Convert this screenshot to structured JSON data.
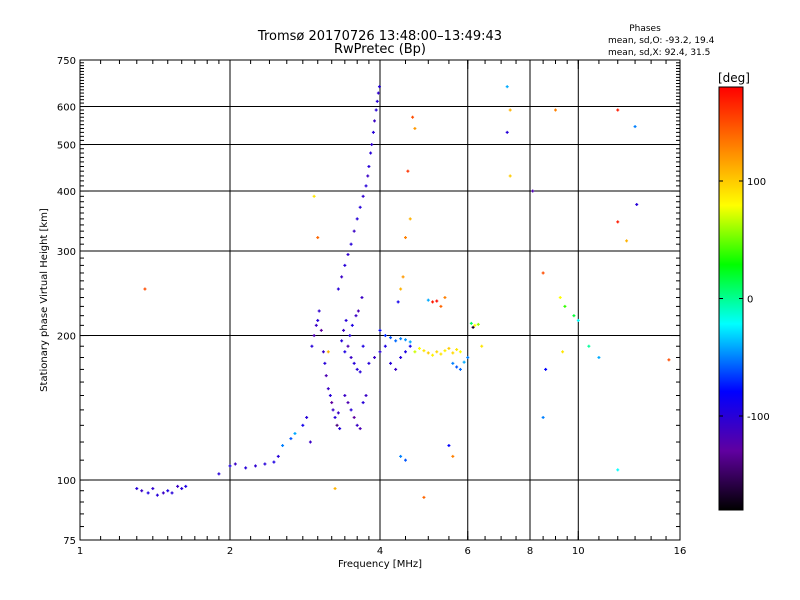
{
  "chart_data": {
    "type": "scatter",
    "title": "Tromsø 20170726 13:48:00–13:49:43",
    "subtitle": "RwPretec (Bp)",
    "xlabel": "Frequency [MHz]",
    "ylabel": "Stationary phase Virtual Height [km]",
    "x_scale": "log2",
    "y_scale": "log",
    "xlim": [
      1,
      16
    ],
    "ylim": [
      75,
      750
    ],
    "x_ticks": [
      1,
      2,
      4,
      6,
      8,
      10,
      16
    ],
    "y_ticks": [
      75,
      100,
      200,
      300,
      400,
      500,
      600,
      750
    ],
    "grid": true,
    "stats": {
      "heading": "Phases",
      "line_o": "mean, sd,O: -93.2, 19.4",
      "line_x": "mean, sd,X:  92.4, 31.5"
    },
    "colorbar": {
      "label": "[deg]",
      "range": [
        -180,
        180
      ],
      "ticks": [
        "100",
        "0",
        "-100"
      ],
      "tick_values": [
        100,
        0,
        -100
      ],
      "colors": [
        "#ff0000",
        "#ff8000",
        "#ffff00",
        "#00ff00",
        "#00ffff",
        "#0000ff",
        "#6000a0",
        "#000000"
      ]
    },
    "series": [
      {
        "points": [
          [
            1.3,
            96,
            -100
          ],
          [
            1.33,
            95,
            -110
          ],
          [
            1.37,
            94,
            -95
          ],
          [
            1.4,
            96,
            -105
          ],
          [
            1.43,
            93,
            -100
          ],
          [
            1.47,
            94,
            -110
          ],
          [
            1.5,
            95,
            -95
          ],
          [
            1.53,
            94,
            -100
          ],
          [
            1.57,
            97,
            -110
          ],
          [
            1.6,
            96,
            -100
          ],
          [
            1.63,
            97,
            -95
          ],
          [
            1.9,
            103,
            -100
          ],
          [
            2.0,
            107,
            -95
          ],
          [
            2.05,
            108,
            -110
          ],
          [
            2.15,
            106,
            -100
          ],
          [
            2.25,
            107,
            -105
          ],
          [
            2.35,
            108,
            -100
          ],
          [
            2.45,
            109,
            -95
          ],
          [
            2.5,
            112,
            -100
          ],
          [
            2.55,
            118,
            -50
          ],
          [
            2.65,
            122,
            -60
          ],
          [
            2.7,
            125,
            -40
          ],
          [
            2.8,
            130,
            -90
          ],
          [
            2.85,
            135,
            -100
          ],
          [
            2.9,
            120,
            -110
          ],
          [
            2.92,
            190,
            -100
          ],
          [
            2.95,
            200,
            -120
          ],
          [
            2.98,
            210,
            -110
          ],
          [
            3.0,
            215,
            -100
          ],
          [
            3.02,
            225,
            -105
          ],
          [
            3.05,
            205,
            -130
          ],
          [
            3.08,
            185,
            -110
          ],
          [
            3.1,
            175,
            -100
          ],
          [
            3.12,
            165,
            -120
          ],
          [
            3.15,
            155,
            -110
          ],
          [
            3.18,
            150,
            -100
          ],
          [
            3.2,
            145,
            -130
          ],
          [
            3.22,
            140,
            -110
          ],
          [
            3.25,
            135,
            -100
          ],
          [
            3.28,
            130,
            -140
          ],
          [
            3.3,
            138,
            -110
          ],
          [
            3.32,
            128,
            -100
          ],
          [
            3.35,
            195,
            -100
          ],
          [
            3.38,
            205,
            -110
          ],
          [
            3.4,
            185,
            -95
          ],
          [
            3.42,
            215,
            -100
          ],
          [
            3.45,
            190,
            -120
          ],
          [
            3.48,
            200,
            -100
          ],
          [
            3.5,
            180,
            -110
          ],
          [
            3.52,
            210,
            -95
          ],
          [
            3.55,
            175,
            -100
          ],
          [
            3.58,
            220,
            -110
          ],
          [
            3.6,
            170,
            -100
          ],
          [
            3.62,
            225,
            -120
          ],
          [
            3.65,
            168,
            -100
          ],
          [
            3.68,
            240,
            -110
          ],
          [
            3.7,
            190,
            -95
          ],
          [
            3.3,
            250,
            -100
          ],
          [
            3.35,
            265,
            -110
          ],
          [
            3.4,
            280,
            -100
          ],
          [
            3.45,
            295,
            -105
          ],
          [
            3.5,
            310,
            -100
          ],
          [
            3.55,
            330,
            -110
          ],
          [
            3.6,
            350,
            -100
          ],
          [
            3.65,
            370,
            -100
          ],
          [
            3.7,
            390,
            -105
          ],
          [
            3.75,
            410,
            -100
          ],
          [
            3.78,
            430,
            -110
          ],
          [
            3.8,
            450,
            -100
          ],
          [
            3.83,
            480,
            -100
          ],
          [
            3.85,
            500,
            -105
          ],
          [
            3.88,
            530,
            -100
          ],
          [
            3.9,
            560,
            -110
          ],
          [
            3.93,
            590,
            -100
          ],
          [
            3.95,
            615,
            -100
          ],
          [
            3.97,
            640,
            -105
          ],
          [
            3.99,
            660,
            -100
          ],
          [
            3.4,
            150,
            -110
          ],
          [
            3.45,
            145,
            -120
          ],
          [
            3.5,
            140,
            -100
          ],
          [
            3.55,
            135,
            -130
          ],
          [
            3.6,
            130,
            -110
          ],
          [
            3.65,
            128,
            -120
          ],
          [
            3.7,
            145,
            -100
          ],
          [
            3.75,
            150,
            -110
          ],
          [
            3.8,
            175,
            -100
          ],
          [
            3.9,
            180,
            -110
          ],
          [
            4.0,
            185,
            -100
          ],
          [
            4.1,
            190,
            -95
          ],
          [
            4.2,
            175,
            -100
          ],
          [
            4.3,
            170,
            -110
          ],
          [
            4.4,
            180,
            -100
          ],
          [
            4.5,
            185,
            -95
          ],
          [
            4.6,
            190,
            -90
          ],
          [
            4.0,
            205,
            -80
          ],
          [
            4.1,
            200,
            -70
          ],
          [
            4.2,
            198,
            -60
          ],
          [
            4.3,
            195,
            -55
          ],
          [
            4.4,
            197,
            -50
          ],
          [
            4.5,
            196,
            -45
          ],
          [
            4.6,
            194,
            -40
          ],
          [
            4.7,
            185,
            70
          ],
          [
            4.8,
            188,
            80
          ],
          [
            4.9,
            186,
            90
          ],
          [
            5.0,
            184,
            100
          ],
          [
            5.1,
            182,
            85
          ],
          [
            5.2,
            185,
            95
          ],
          [
            5.3,
            183,
            90
          ],
          [
            5.4,
            186,
            85
          ],
          [
            5.5,
            188,
            100
          ],
          [
            5.6,
            184,
            95
          ],
          [
            5.7,
            187,
            90
          ],
          [
            5.8,
            185,
            80
          ],
          [
            5.6,
            175,
            -50
          ],
          [
            5.7,
            172,
            -60
          ],
          [
            5.8,
            170,
            -55
          ],
          [
            5.9,
            176,
            -40
          ],
          [
            4.7,
            540,
            120
          ],
          [
            4.65,
            570,
            150
          ],
          [
            4.55,
            440,
            160
          ],
          [
            4.6,
            350,
            110
          ],
          [
            4.5,
            320,
            130
          ],
          [
            4.45,
            265,
            120
          ],
          [
            4.4,
            250,
            110
          ],
          [
            4.35,
            235,
            -90
          ],
          [
            4.5,
            110,
            -60
          ],
          [
            4.4,
            112,
            -50
          ],
          [
            5.1,
            235,
            170
          ],
          [
            5.2,
            236,
            175
          ],
          [
            5.0,
            237,
            -40
          ],
          [
            5.3,
            230,
            140
          ],
          [
            5.4,
            240,
            130
          ],
          [
            6.1,
            212,
            10
          ],
          [
            6.2,
            210,
            80
          ],
          [
            6.3,
            211,
            60
          ],
          [
            6.15,
            208,
            -170
          ],
          [
            6.4,
            190,
            90
          ],
          [
            5.5,
            118,
            -80
          ],
          [
            5.6,
            112,
            130
          ],
          [
            6.0,
            180,
            -50
          ],
          [
            7.2,
            660,
            -40
          ],
          [
            7.3,
            590,
            110
          ],
          [
            7.2,
            530,
            -100
          ],
          [
            7.3,
            430,
            100
          ],
          [
            8.1,
            400,
            -120
          ],
          [
            9.0,
            590,
            130
          ],
          [
            12.0,
            590,
            170
          ],
          [
            13.0,
            545,
            -50
          ],
          [
            13.1,
            375,
            -100
          ],
          [
            12.0,
            345,
            170
          ],
          [
            12.5,
            315,
            110
          ],
          [
            8.5,
            270,
            150
          ],
          [
            9.2,
            240,
            80
          ],
          [
            9.4,
            230,
            40
          ],
          [
            9.8,
            220,
            20
          ],
          [
            10.0,
            215,
            -20
          ],
          [
            10.5,
            190,
            0
          ],
          [
            11.0,
            180,
            -40
          ],
          [
            9.3,
            185,
            90
          ],
          [
            8.6,
            170,
            -80
          ],
          [
            15.2,
            178,
            150
          ],
          [
            12.0,
            105,
            -20
          ],
          [
            8.5,
            135,
            -50
          ],
          [
            4.9,
            92,
            140
          ],
          [
            3.25,
            96,
            110
          ],
          [
            1.35,
            250,
            150
          ],
          [
            2.95,
            390,
            90
          ],
          [
            3.0,
            320,
            140
          ],
          [
            3.15,
            185,
            110
          ]
        ]
      }
    ]
  }
}
